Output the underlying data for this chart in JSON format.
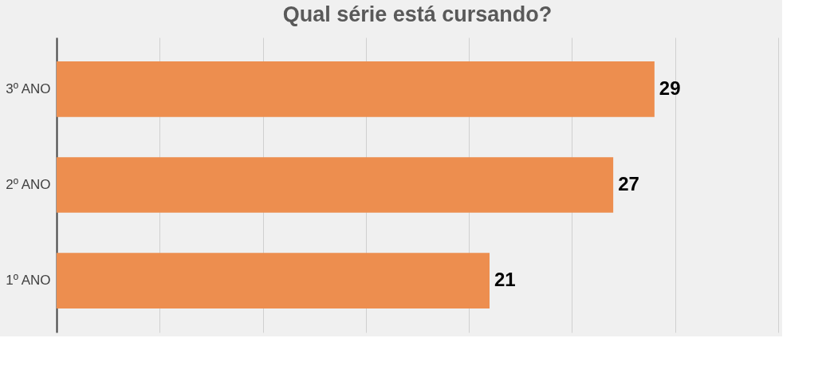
{
  "chart_data": {
    "type": "bar",
    "orientation": "horizontal",
    "title": "Qual série está cursando?",
    "categories": [
      "3º ANO",
      "2º ANO",
      "1º ANO"
    ],
    "values": [
      29,
      27,
      21
    ],
    "color": "#ed8e4f",
    "xlim": [
      0,
      35
    ],
    "xticks": [
      {
        "value": 0,
        "label": null
      },
      {
        "value": 5,
        "label": null
      },
      {
        "value": 10,
        "label": null
      },
      {
        "value": 15,
        "label": null
      },
      {
        "value": 20,
        "label": null
      },
      {
        "value": 25,
        "label": null
      },
      {
        "value": 30,
        "label": null
      },
      {
        "value": 35,
        "label": null
      }
    ],
    "tick_labels": "y",
    "grid": "x",
    "data_labels": true
  }
}
